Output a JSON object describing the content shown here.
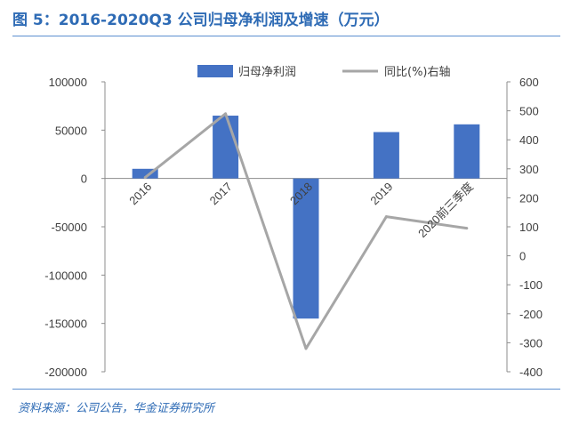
{
  "header": {
    "title": "图 5：2016-2020Q3 公司归母净利润及增速（万元）"
  },
  "footer": {
    "source": "资料来源：公司公告，华金证券研究所"
  },
  "colors": {
    "bar": "#4472c4",
    "line": "#a6a6a6",
    "accent": "#2e6bb5"
  },
  "chart_data": {
    "type": "bar",
    "categories": [
      "2016",
      "2017",
      "2018",
      "2019",
      "2020前三季度"
    ],
    "category_tick_labels": [
      "2016",
      "2017",
      "2018",
      "2019",
      "2020前三季度"
    ],
    "series": [
      {
        "name": "归母净利润",
        "type": "bar",
        "axis": "left",
        "values": [
          10000,
          65000,
          -145000,
          48000,
          56000
        ]
      },
      {
        "name": "同比(%)右轴",
        "type": "line",
        "axis": "right",
        "values": [
          270,
          490,
          -320,
          135,
          95
        ]
      }
    ],
    "ylim_left": [
      -200000,
      100000
    ],
    "yticks_left": [
      "100000",
      "50000",
      "0",
      "-50000",
      "-100000",
      "-150000",
      "-200000"
    ],
    "ylim_right": [
      -400,
      600
    ],
    "yticks_right": [
      "600",
      "500",
      "400",
      "300",
      "200",
      "100",
      "0",
      "-100",
      "-200",
      "-300",
      "-400"
    ],
    "legend": {
      "position": "top-right",
      "items": [
        "归母净利润",
        "同比(%)右轴"
      ]
    },
    "grid": false
  }
}
